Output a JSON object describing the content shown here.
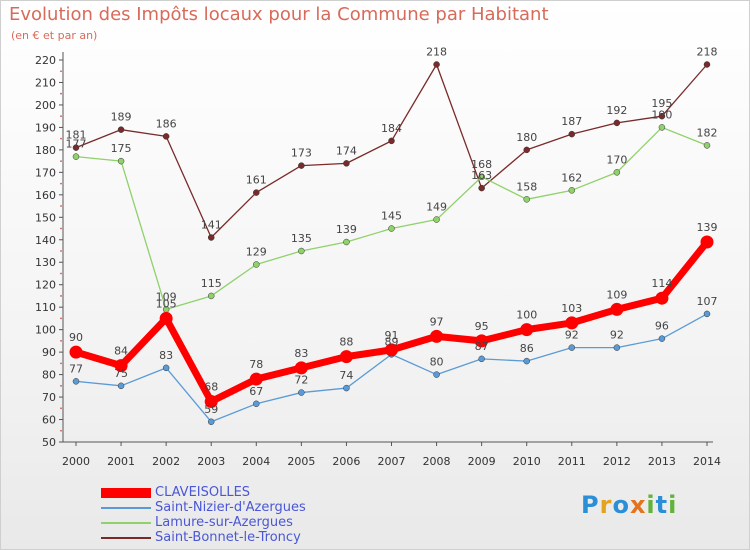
{
  "title": "Evolution des Impôts locaux pour la Commune par Habitant",
  "subtitle": "(en € et par an)",
  "logo": {
    "text": "Proxiti",
    "letters": [
      {
        "ch": "P",
        "color": "#2a8fd6"
      },
      {
        "ch": "r",
        "color": "#e5a21d"
      },
      {
        "ch": "o",
        "color": "#2a8fd6"
      },
      {
        "ch": "x",
        "color": "#e5731d"
      },
      {
        "ch": "i",
        "color": "#63b33a"
      },
      {
        "ch": "t",
        "color": "#2a8fd6"
      },
      {
        "ch": "i",
        "color": "#63b33a"
      }
    ]
  },
  "chart_data": {
    "type": "line",
    "title": "Evolution des Impôts locaux pour la Commune par Habitant",
    "subtitle": "(en € et par an)",
    "xlabel": "",
    "ylabel": "",
    "x": [
      "2000",
      "2001",
      "2002",
      "2003",
      "2004",
      "2005",
      "2006",
      "2007",
      "2008",
      "2009",
      "2010",
      "2011",
      "2012",
      "2013",
      "2014"
    ],
    "ylim": [
      50,
      220
    ],
    "yticks": [
      50,
      60,
      70,
      80,
      90,
      100,
      110,
      120,
      130,
      140,
      150,
      160,
      170,
      180,
      190,
      200,
      210,
      220
    ],
    "grid": false,
    "legend_position": "bottom",
    "series": [
      {
        "name": "CLAVEISOLLES",
        "color": "#ff0000",
        "emphasis": true,
        "values": [
          90,
          84,
          105,
          68,
          78,
          83,
          88,
          91,
          97,
          95,
          100,
          103,
          109,
          114,
          139
        ]
      },
      {
        "name": "Saint-Nizier-d'Azergues",
        "color": "#5b9bd5",
        "emphasis": false,
        "values": [
          77,
          75,
          83,
          59,
          67,
          72,
          74,
          89,
          80,
          87,
          86,
          92,
          92,
          96,
          107
        ]
      },
      {
        "name": "Lamure-sur-Azergues",
        "color": "#8fd16a",
        "emphasis": false,
        "values": [
          177,
          175,
          109,
          115,
          129,
          135,
          139,
          145,
          149,
          168,
          158,
          162,
          170,
          190,
          182
        ]
      },
      {
        "name": "Saint-Bonnet-le-Troncy",
        "color": "#7a2a2a",
        "emphasis": false,
        "values": [
          181,
          189,
          186,
          141,
          161,
          173,
          174,
          184,
          218,
          163,
          180,
          187,
          192,
          195,
          218
        ]
      }
    ]
  }
}
